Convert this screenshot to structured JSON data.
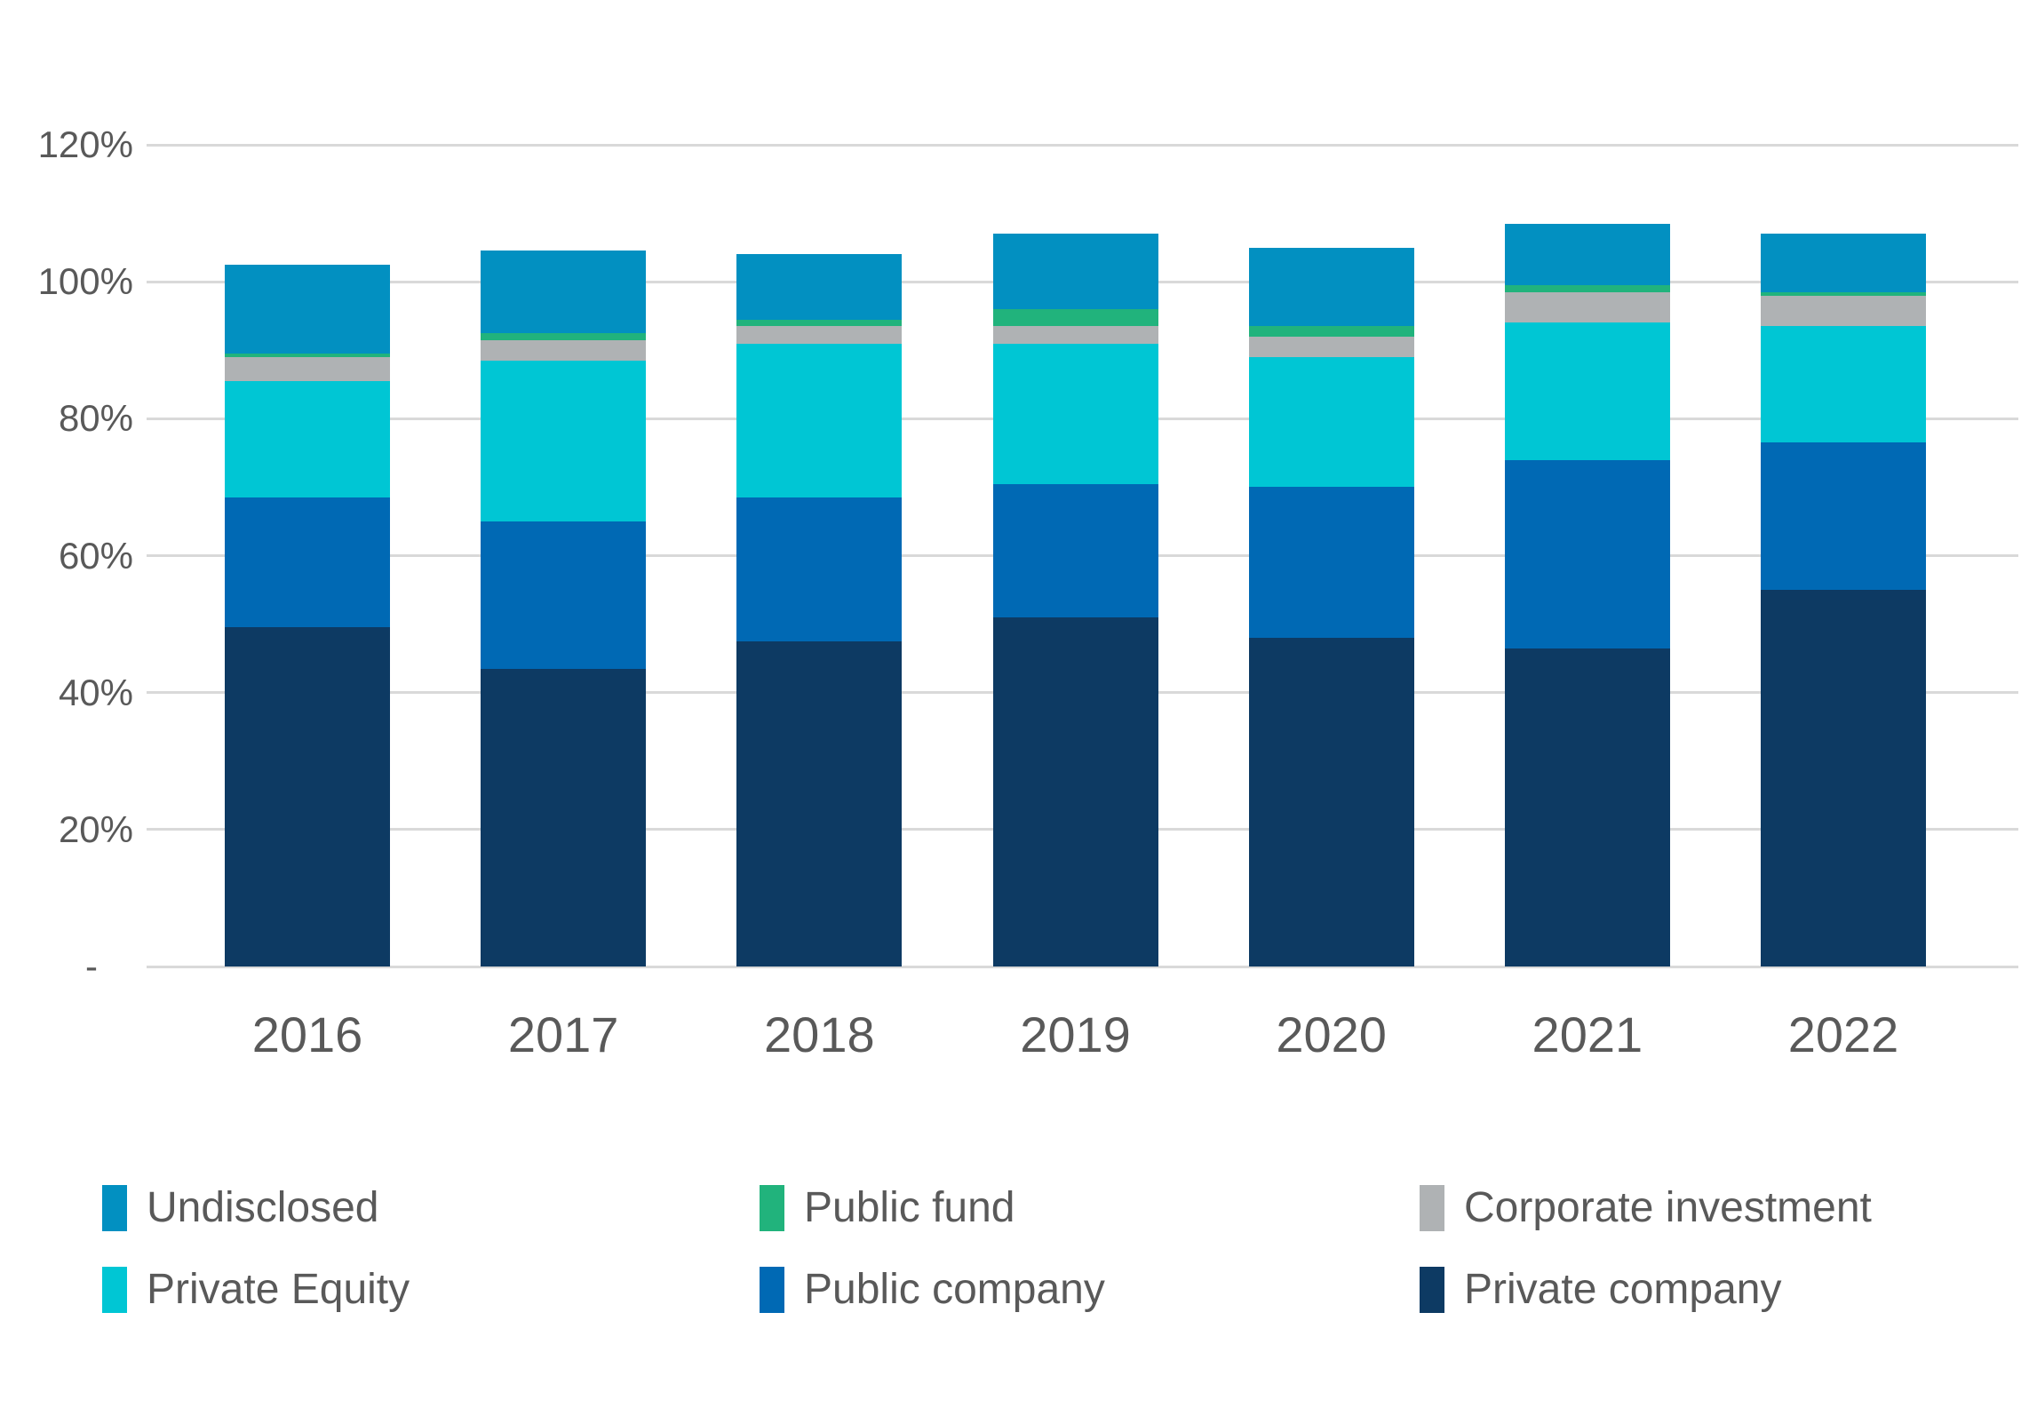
{
  "chart_data": {
    "type": "bar",
    "stacked": true,
    "title": "",
    "xlabel": "",
    "ylabel": "",
    "ylim": [
      0,
      120
    ],
    "grid": true,
    "legend_position": "bottom",
    "categories": [
      "2016",
      "2017",
      "2018",
      "2019",
      "2020",
      "2021",
      "2022"
    ],
    "series": [
      {
        "name": "Private company",
        "color": "#0D3A63",
        "values": [
          49.5,
          43.5,
          47.5,
          51.0,
          48.0,
          46.5,
          55.0
        ]
      },
      {
        "name": "Public company",
        "color": "#0069B4",
        "values": [
          19.0,
          21.5,
          21.0,
          19.5,
          22.0,
          27.5,
          21.5
        ]
      },
      {
        "name": "Private Equity",
        "color": "#00C6D4",
        "values": [
          17.0,
          23.5,
          22.5,
          20.5,
          19.0,
          20.0,
          17.0
        ]
      },
      {
        "name": "Corporate investment",
        "color": "#AFB2B4",
        "values": [
          3.5,
          3.0,
          2.5,
          2.5,
          3.0,
          4.5,
          4.5
        ]
      },
      {
        "name": "Public fund",
        "color": "#21B37C",
        "values": [
          0.5,
          1.0,
          1.0,
          2.5,
          1.5,
          1.0,
          0.5
        ]
      },
      {
        "name": "Undisclosed",
        "color": "#0290C1",
        "values": [
          13.0,
          12.0,
          9.5,
          11.0,
          11.5,
          9.0,
          8.5
        ]
      }
    ],
    "y_ticks": [
      {
        "value": 0,
        "label": "-"
      },
      {
        "value": 20,
        "label": "20%"
      },
      {
        "value": 40,
        "label": "40%"
      },
      {
        "value": 60,
        "label": "60%"
      },
      {
        "value": 80,
        "label": "80%"
      },
      {
        "value": 100,
        "label": "100%"
      },
      {
        "value": 120,
        "label": "120%"
      }
    ],
    "legend_order": [
      "Undisclosed",
      "Public fund",
      "Corporate investment",
      "Private Equity",
      "Public company",
      "Private company"
    ]
  },
  "colors": {
    "background": "#FFFFFF",
    "gridline": "#D9D9D9",
    "axis_text": "#595959"
  }
}
